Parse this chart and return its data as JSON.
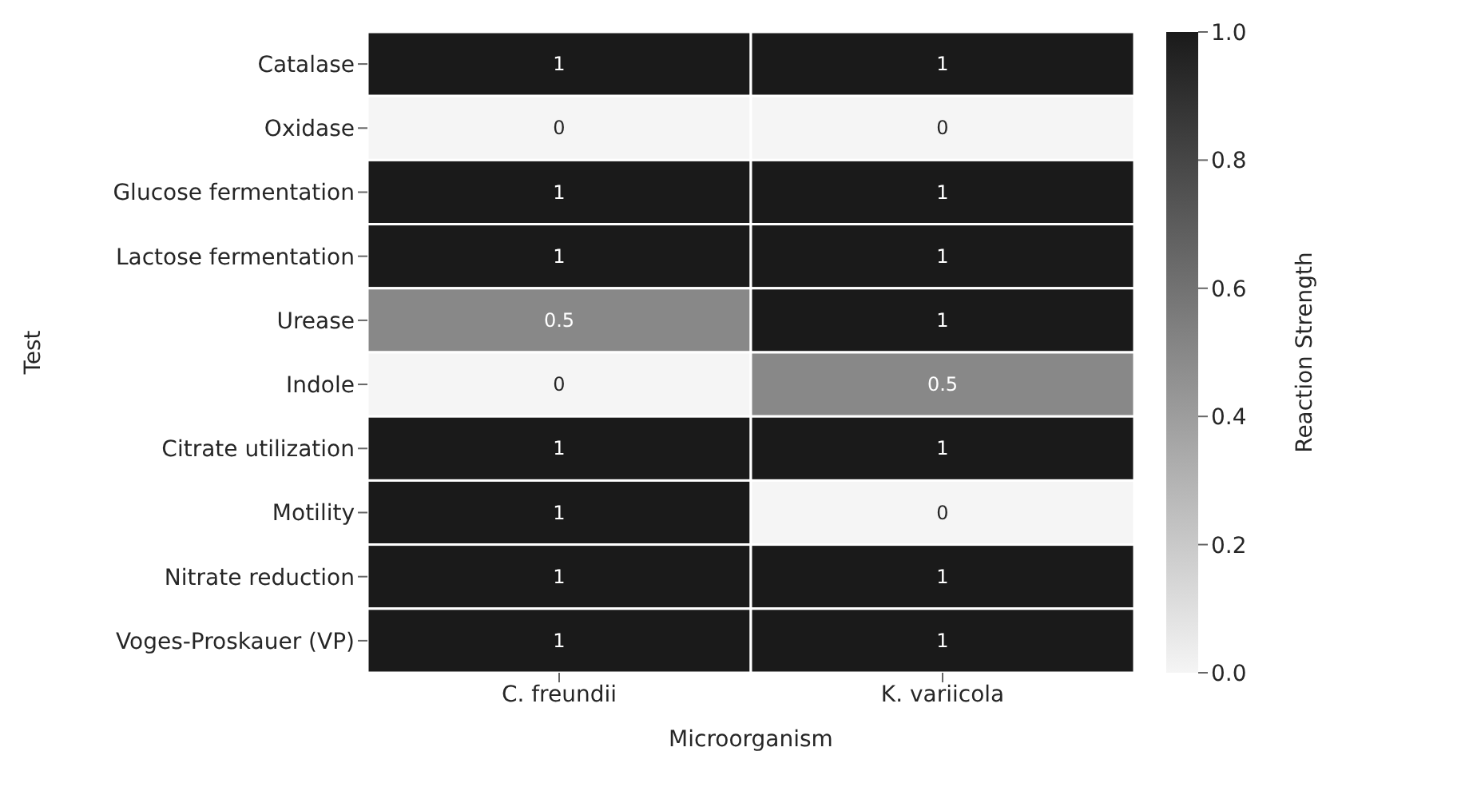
{
  "chart_data": {
    "type": "heatmap",
    "xlabel": "Microorganism",
    "ylabel": "Test",
    "clabel": "Reaction Strength",
    "categories": [
      "C. freundii",
      "K. variicola"
    ],
    "y_categories": [
      "Catalase",
      "Oxidase",
      "Glucose fermentation",
      "Lactose fermentation",
      "Urease",
      "Indole",
      "Citrate utilization",
      "Motility",
      "Nitrate reduction",
      "Voges-Proskauer (VP)"
    ],
    "cells": [
      [
        1,
        1
      ],
      [
        0,
        0
      ],
      [
        1,
        1
      ],
      [
        1,
        1
      ],
      [
        0.5,
        1
      ],
      [
        0,
        0.5
      ],
      [
        1,
        1
      ],
      [
        1,
        0
      ],
      [
        1,
        1
      ],
      [
        1,
        1
      ]
    ],
    "data_labels": true,
    "clim": [
      0,
      1
    ],
    "cticks": [
      {
        "value": 0,
        "label": "0.0"
      },
      {
        "value": 0.2,
        "label": "0.2"
      },
      {
        "value": 0.4,
        "label": "0.4"
      },
      {
        "value": 0.6,
        "label": "0.6"
      },
      {
        "value": 0.8,
        "label": "0.8"
      },
      {
        "value": 1,
        "label": "1.0"
      }
    ]
  }
}
